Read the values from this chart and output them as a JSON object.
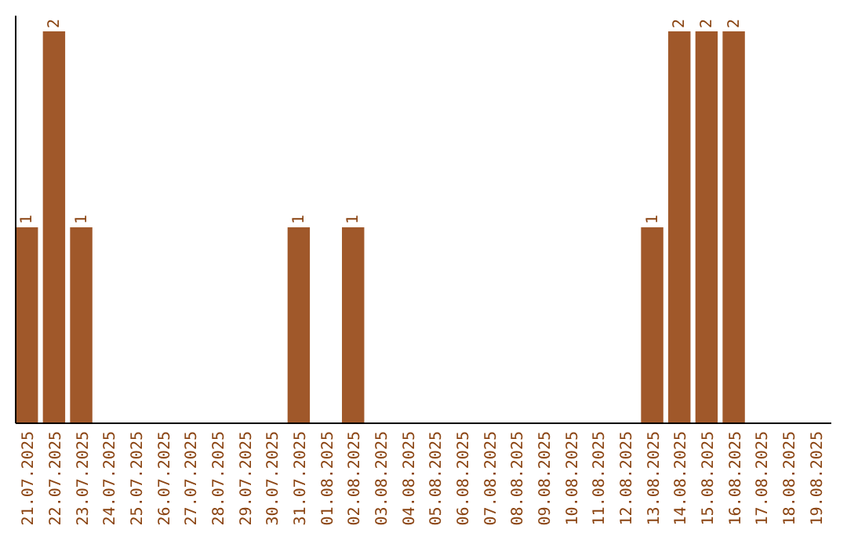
{
  "chart_data": {
    "type": "bar",
    "categories": [
      "21.07.2025",
      "22.07.2025",
      "23.07.2025",
      "24.07.2025",
      "25.07.2025",
      "26.07.2025",
      "27.07.2025",
      "28.07.2025",
      "29.07.2025",
      "30.07.2025",
      "31.07.2025",
      "01.08.2025",
      "02.08.2025",
      "03.08.2025",
      "04.08.2025",
      "05.08.2025",
      "06.08.2025",
      "07.08.2025",
      "08.08.2025",
      "09.08.2025",
      "10.08.2025",
      "11.08.2025",
      "12.08.2025",
      "13.08.2025",
      "14.08.2025",
      "15.08.2025",
      "16.08.2025",
      "17.08.2025",
      "18.08.2025",
      "19.08.2025"
    ],
    "values": [
      1,
      2,
      1,
      0,
      0,
      0,
      0,
      0,
      0,
      0,
      1,
      0,
      1,
      0,
      0,
      0,
      0,
      0,
      0,
      0,
      0,
      0,
      0,
      1,
      2,
      2,
      2,
      0,
      0,
      0
    ],
    "value_labels": [
      "1",
      "2",
      "1",
      null,
      null,
      null,
      null,
      null,
      null,
      null,
      "1",
      null,
      "1",
      null,
      null,
      null,
      null,
      null,
      null,
      null,
      null,
      null,
      null,
      "1",
      "2",
      "2",
      "2",
      null,
      null,
      null
    ],
    "color": "#a0582a",
    "ylim": [
      0,
      2.08
    ],
    "tick_labels": "x"
  }
}
